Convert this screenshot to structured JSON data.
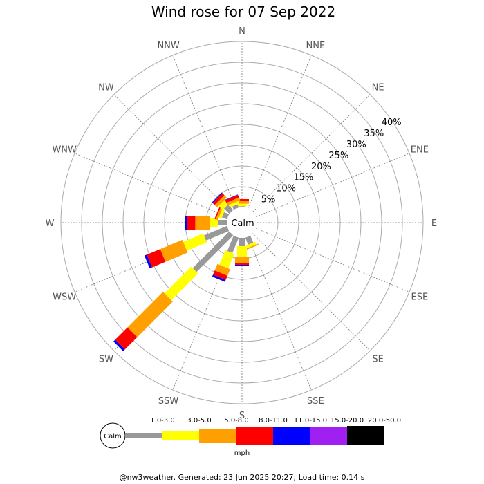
{
  "chart_data": {
    "type": "wind-rose",
    "title": "Wind rose for 07 Sep 2022",
    "directions": [
      "N",
      "NNE",
      "NE",
      "ENE",
      "E",
      "ESE",
      "SE",
      "SSE",
      "S",
      "SSW",
      "SW",
      "WSW",
      "W",
      "WNW",
      "NW",
      "NNW"
    ],
    "radial_ticks": [
      "5%",
      "10%",
      "15%",
      "20%",
      "25%",
      "30%",
      "35%",
      "40%"
    ],
    "radial_max": 40,
    "calm_label": "Calm",
    "speed_bins": [
      {
        "label": "1.0-3.0",
        "color": "#999999"
      },
      {
        "label": "3.0-5.0",
        "color": "#ffff00"
      },
      {
        "label": "5.0-8.0",
        "color": "#ff9f00"
      },
      {
        "label": "8.0-11.0",
        "color": "#ff0000"
      },
      {
        "label": "11.0-15.0",
        "color": "#0000ff"
      },
      {
        "label": "15.0-20.0",
        "color": "#9f20f0"
      },
      {
        "label": "20.0-50.0",
        "color": "#000000"
      }
    ],
    "unit": "mph",
    "cumulative_percent": {
      "N": [
        0.3,
        0.9,
        1.6,
        2.0,
        2.0,
        2.0,
        2.0
      ],
      "NNW": [
        0.8,
        1.5,
        2.2,
        2.9,
        3.0,
        3.0,
        3.0
      ],
      "NW": [
        1.8,
        3.2,
        4.0,
        4.7,
        4.9,
        4.9,
        4.9
      ],
      "WNW": [
        1.3,
        2.0,
        2.5,
        2.8,
        2.8,
        2.8,
        2.8
      ],
      "W": [
        2.2,
        4.0,
        7.6,
        9.6,
        10.0,
        10.0,
        10.0
      ],
      "WSW": [
        6.0,
        11.2,
        17.0,
        20.5,
        21.1,
        21.1,
        21.1
      ],
      "SW": [
        12.5,
        21.6,
        33.7,
        37.9,
        38.5,
        38.5,
        38.5
      ],
      "SSW": [
        4.0,
        7.8,
        9.5,
        10.6,
        11.1,
        11.1,
        11.1
      ],
      "S": [
        2.0,
        4.5,
        6.0,
        6.5,
        6.8,
        6.8,
        6.8
      ],
      "SSE": [
        1.8,
        2.5,
        2.8,
        2.8,
        2.8,
        2.8,
        2.8
      ],
      "ENE": [
        0.0,
        0.0,
        0.0,
        0.0,
        0.0,
        0.0,
        0.0
      ],
      "NNE": [
        0.0,
        0.0,
        0.0,
        0.0,
        0.0,
        0.0,
        0.0
      ],
      "NE": [
        0.0,
        0.0,
        0.0,
        0.0,
        0.0,
        0.0,
        0.0
      ],
      "E": [
        0.0,
        0.0,
        0.0,
        0.0,
        0.0,
        0.0,
        0.0
      ],
      "ESE": [
        0.0,
        0.0,
        0.0,
        0.0,
        0.0,
        0.0,
        0.0
      ],
      "SE": [
        0.0,
        0.0,
        0.0,
        0.0,
        0.0,
        0.0,
        0.0
      ]
    },
    "grid": true
  },
  "footer": "@nw3weather. Generated: 23 Jun 2025 20:27; Load time: 0.14 s"
}
